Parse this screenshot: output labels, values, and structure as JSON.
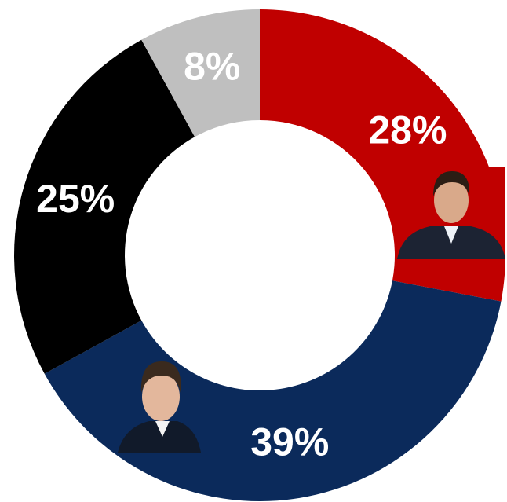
{
  "chart_data": {
    "type": "donut",
    "values": [
      28,
      39,
      25,
      8
    ],
    "value_labels": [
      "28%",
      "39%",
      "25%",
      "8%"
    ],
    "colors": [
      "#c00000",
      "#0b2a5b",
      "#000000",
      "#bfbfbf"
    ]
  }
}
